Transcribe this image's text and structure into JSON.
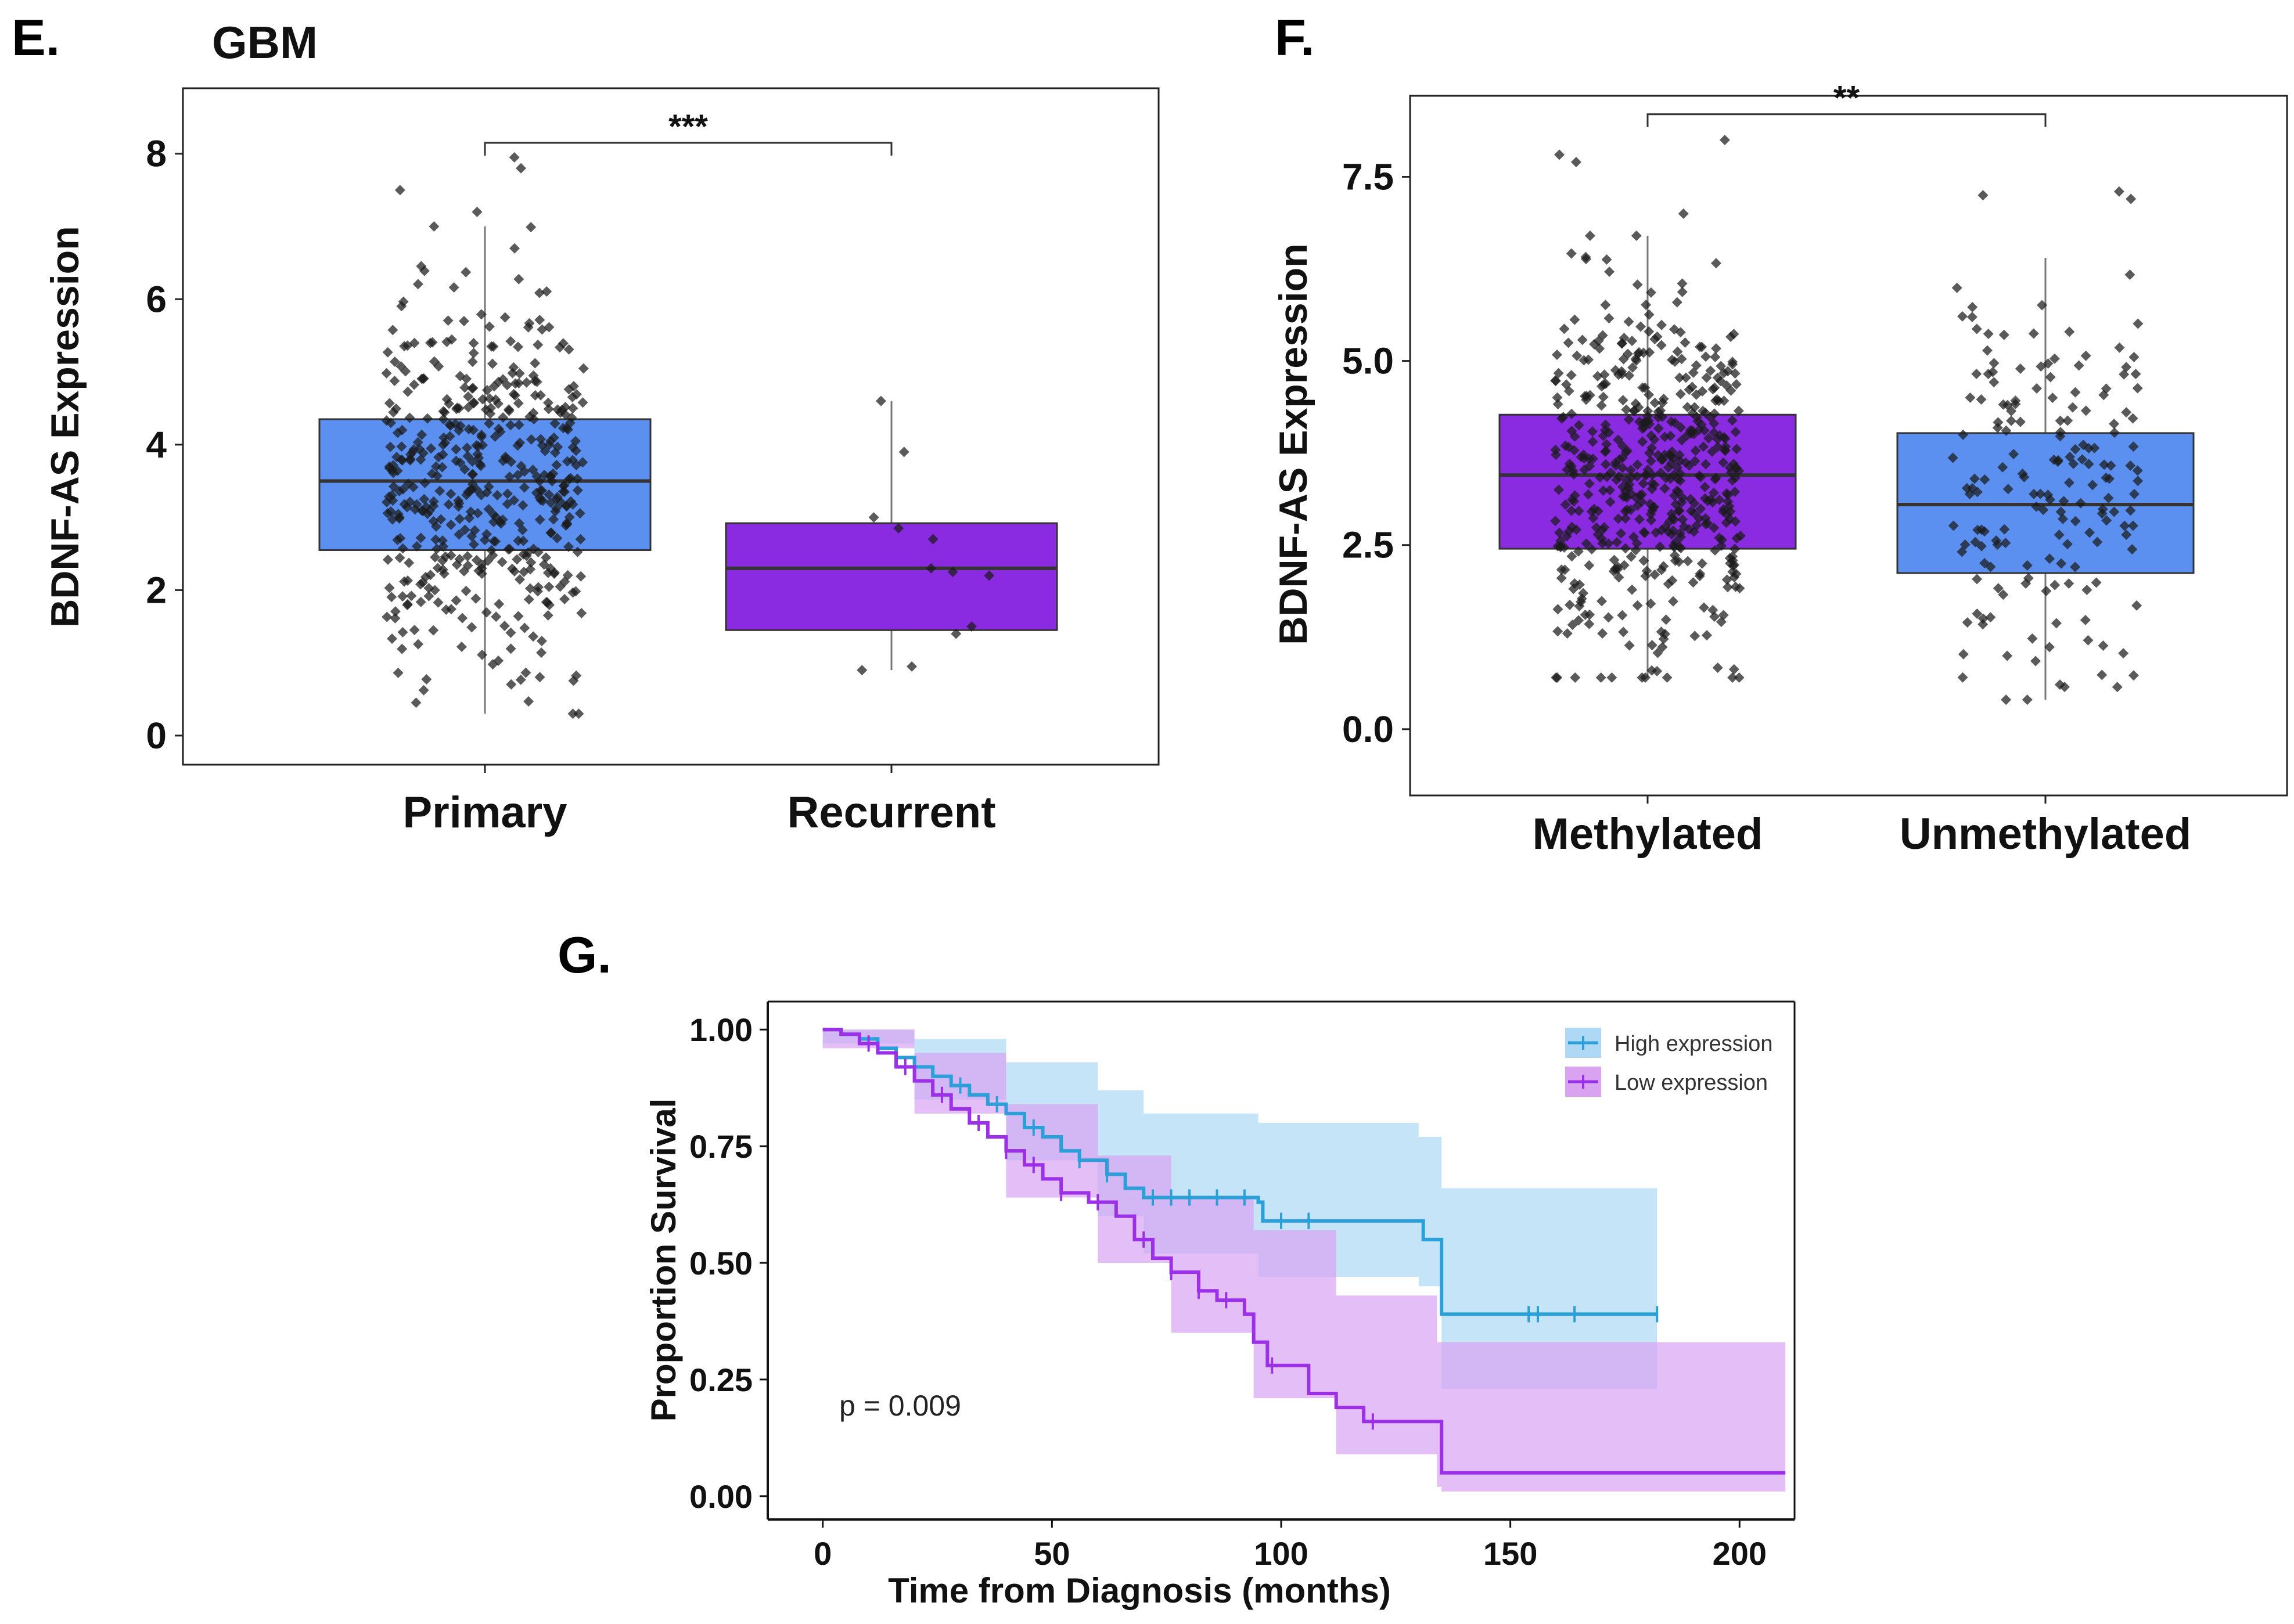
{
  "panels": {
    "e": {
      "letter": "E.",
      "title": "GBM"
    },
    "f": {
      "letter": "F."
    },
    "g": {
      "letter": "G."
    }
  },
  "colors": {
    "blue_box": "#5b8ff0",
    "purple_box": "#8a2be2",
    "km_high": "#2a9fd8",
    "km_low": "#9b30e8",
    "km_high_band": "#aed8f3",
    "km_low_band": "#d9a3f2",
    "points": "#1a1a1a"
  },
  "chart_data": [
    {
      "id": "E",
      "type": "box",
      "title": "GBM",
      "ylabel": "BDNF-AS Expression",
      "xlabel": "",
      "ylim": [
        -0.4,
        8.9
      ],
      "yticks": [
        0,
        2,
        4,
        6,
        8
      ],
      "ytick_labels": [
        "0",
        "2",
        "4",
        "6",
        "8"
      ],
      "categories": [
        "Primary",
        "Recurrent"
      ],
      "boxes": [
        {
          "name": "Primary",
          "color": "blue",
          "whisker_low": 0.3,
          "q1": 2.55,
          "median": 3.5,
          "q3": 4.35,
          "whisker_high": 7.0,
          "outliers": [
            7.2,
            7.5,
            7.8,
            7.95
          ],
          "jitter_n": 480,
          "jitter_mean": 3.45,
          "jitter_sd": 1.3
        },
        {
          "name": "Recurrent",
          "color": "purple",
          "whisker_low": 0.9,
          "q1": 1.45,
          "median": 2.3,
          "q3": 2.92,
          "whisker_high": 4.6,
          "outliers": [],
          "points": [
            0.95,
            0.9,
            1.4,
            1.5,
            2.2,
            2.25,
            2.3,
            2.7,
            2.85,
            3.0,
            3.9,
            4.6
          ]
        }
      ],
      "significance": {
        "label": "***",
        "from": "Primary",
        "to": "Recurrent",
        "y": 8.15
      }
    },
    {
      "id": "F",
      "type": "box",
      "title": "",
      "ylabel": "BDNF-AS Expression",
      "xlabel": "",
      "ylim": [
        -0.9,
        8.6
      ],
      "yticks": [
        0.0,
        2.5,
        5.0,
        7.5
      ],
      "ytick_labels": [
        "0.0",
        "2.5",
        "5.0",
        "7.5"
      ],
      "categories": [
        "Methylated",
        "Unmethylated"
      ],
      "boxes": [
        {
          "name": "Methylated",
          "color": "purple",
          "whisker_low": 0.7,
          "q1": 2.45,
          "median": 3.45,
          "q3": 4.27,
          "whisker_high": 6.7,
          "outliers": [
            7.0,
            7.7,
            7.8,
            8.0
          ],
          "jitter_n": 520,
          "jitter_mean": 3.4,
          "jitter_sd": 1.25
        },
        {
          "name": "Unmethylated",
          "color": "blue",
          "whisker_low": 0.4,
          "q1": 2.12,
          "median": 3.05,
          "q3": 4.02,
          "whisker_high": 6.4,
          "outliers": [
            7.2,
            7.25,
            7.3
          ],
          "jitter_n": 170,
          "jitter_mean": 3.1,
          "jitter_sd": 1.3
        }
      ],
      "significance": {
        "label": "**",
        "from": "Methylated",
        "to": "Unmethylated",
        "y": 8.35
      }
    },
    {
      "id": "G",
      "type": "line",
      "subtype": "kaplan-meier",
      "xlabel": "Time from Diagnosis (months)",
      "ylabel": "Proportion Survival",
      "xlim": [
        -12,
        212
      ],
      "ylim": [
        -0.05,
        1.06
      ],
      "xticks": [
        0,
        50,
        100,
        150,
        200
      ],
      "yticks": [
        0.0,
        0.25,
        0.5,
        0.75,
        1.0
      ],
      "ytick_labels": [
        "0.00",
        "0.25",
        "0.50",
        "0.75",
        "1.00"
      ],
      "annotation": "p = 0.009",
      "series": [
        {
          "name": "High expression",
          "color": "high",
          "steps": [
            [
              0,
              1.0
            ],
            [
              4,
              0.99
            ],
            [
              8,
              0.98
            ],
            [
              12,
              0.96
            ],
            [
              16,
              0.94
            ],
            [
              20,
              0.92
            ],
            [
              24,
              0.9
            ],
            [
              28,
              0.88
            ],
            [
              32,
              0.86
            ],
            [
              36,
              0.84
            ],
            [
              40,
              0.82
            ],
            [
              44,
              0.79
            ],
            [
              48,
              0.77
            ],
            [
              52,
              0.74
            ],
            [
              56,
              0.72
            ],
            [
              62,
              0.69
            ],
            [
              66,
              0.66
            ],
            [
              70,
              0.64
            ],
            [
              95,
              0.63
            ],
            [
              96,
              0.59
            ],
            [
              130,
              0.59
            ],
            [
              131,
              0.55
            ],
            [
              134,
              0.55
            ],
            [
              135,
              0.39
            ],
            [
              182,
              0.39
            ]
          ],
          "band_upper": [
            [
              0,
              1.0
            ],
            [
              20,
              0.98
            ],
            [
              40,
              0.93
            ],
            [
              60,
              0.87
            ],
            [
              70,
              0.82
            ],
            [
              95,
              0.8
            ],
            [
              130,
              0.77
            ],
            [
              135,
              0.66
            ],
            [
              182,
              0.66
            ]
          ],
          "band_lower": [
            [
              0,
              0.97
            ],
            [
              20,
              0.85
            ],
            [
              40,
              0.72
            ],
            [
              60,
              0.6
            ],
            [
              70,
              0.52
            ],
            [
              95,
              0.47
            ],
            [
              130,
              0.45
            ],
            [
              135,
              0.23
            ],
            [
              182,
              0.23
            ]
          ],
          "censor_times": [
            30,
            38,
            46,
            56,
            62,
            72,
            76,
            80,
            86,
            92,
            100,
            106,
            154,
            156,
            164,
            182
          ]
        },
        {
          "name": "Low expression",
          "color": "low",
          "steps": [
            [
              0,
              1.0
            ],
            [
              4,
              0.99
            ],
            [
              8,
              0.97
            ],
            [
              12,
              0.95
            ],
            [
              16,
              0.92
            ],
            [
              20,
              0.89
            ],
            [
              24,
              0.86
            ],
            [
              28,
              0.83
            ],
            [
              32,
              0.8
            ],
            [
              36,
              0.77
            ],
            [
              40,
              0.74
            ],
            [
              44,
              0.71
            ],
            [
              48,
              0.68
            ],
            [
              52,
              0.65
            ],
            [
              58,
              0.63
            ],
            [
              64,
              0.6
            ],
            [
              68,
              0.55
            ],
            [
              72,
              0.51
            ],
            [
              76,
              0.48
            ],
            [
              82,
              0.44
            ],
            [
              86,
              0.42
            ],
            [
              92,
              0.39
            ],
            [
              94,
              0.33
            ],
            [
              97,
              0.28
            ],
            [
              106,
              0.22
            ],
            [
              112,
              0.19
            ],
            [
              118,
              0.16
            ],
            [
              134,
              0.16
            ],
            [
              135,
              0.05
            ],
            [
              210,
              0.05
            ]
          ],
          "band_upper": [
            [
              0,
              1.0
            ],
            [
              20,
              0.95
            ],
            [
              40,
              0.84
            ],
            [
              60,
              0.73
            ],
            [
              76,
              0.64
            ],
            [
              94,
              0.57
            ],
            [
              112,
              0.43
            ],
            [
              134,
              0.33
            ],
            [
              135,
              0.33
            ],
            [
              210,
              0.33
            ]
          ],
          "band_lower": [
            [
              0,
              0.96
            ],
            [
              20,
              0.82
            ],
            [
              40,
              0.64
            ],
            [
              60,
              0.5
            ],
            [
              76,
              0.35
            ],
            [
              94,
              0.21
            ],
            [
              112,
              0.09
            ],
            [
              134,
              0.02
            ],
            [
              135,
              0.01
            ],
            [
              210,
              0.01
            ]
          ],
          "censor_times": [
            10,
            18,
            26,
            34,
            40,
            46,
            52,
            60,
            70,
            76,
            82,
            88,
            98,
            120
          ]
        }
      ]
    }
  ]
}
